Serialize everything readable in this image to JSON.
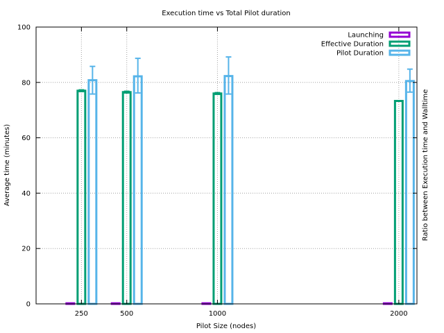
{
  "chart_data": {
    "type": "bar",
    "title": "Execution time vs Total Pilot duration",
    "xlabel": "Pilot Size (nodes)",
    "ylabel": "Average time (minutes)",
    "y2label": "Ratio between Execution time and Walltime",
    "ylim": [
      0,
      100
    ],
    "yticks": [
      "0",
      "20",
      "40",
      "60",
      "80",
      "100"
    ],
    "xlim": [
      0,
      2100
    ],
    "categories": [
      "250",
      "500",
      "1000",
      "2000"
    ],
    "x": [
      250,
      500,
      1000,
      2000
    ],
    "grid": true,
    "legend_position": "top-right",
    "series": [
      {
        "name": "Launching",
        "color": "#9400d3",
        "values": [
          0.2,
          0.2,
          0.2,
          0.2
        ]
      },
      {
        "name": "Effective Duration",
        "color": "#009e73",
        "values": [
          77,
          76.5,
          76,
          73.3
        ],
        "error_low": [
          76.7,
          76.2,
          75.7,
          73.3
        ],
        "error_high": [
          77.3,
          76.8,
          76.3,
          73.3
        ]
      },
      {
        "name": "Pilot Duration",
        "color": "#56b4e9",
        "values": [
          80.8,
          82.2,
          82.3,
          80.5
        ],
        "error_low": [
          75.8,
          76.2,
          75.8,
          76.5
        ],
        "error_high": [
          85.8,
          88.7,
          89.2,
          84.8
        ]
      }
    ]
  }
}
